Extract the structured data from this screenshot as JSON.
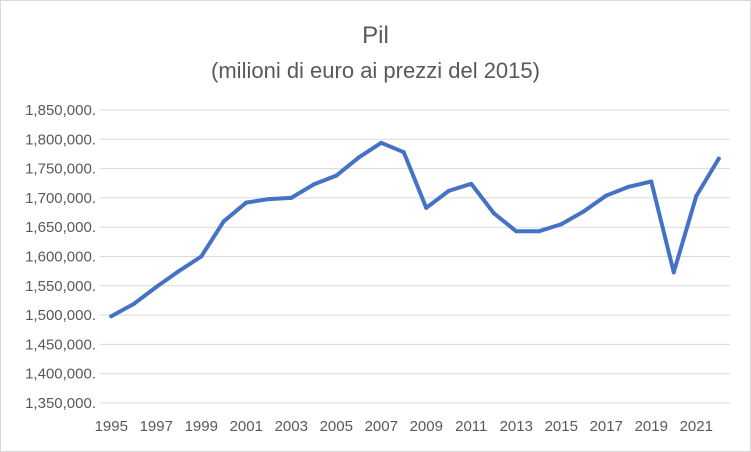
{
  "chart_data": {
    "type": "line",
    "title": "Pil",
    "subtitle": "(milioni di euro ai prezzi del 2015)",
    "xlabel": "",
    "ylabel": "",
    "x": [
      1995,
      1996,
      1997,
      1998,
      1999,
      2000,
      2001,
      2002,
      2003,
      2004,
      2005,
      2006,
      2007,
      2008,
      2009,
      2010,
      2011,
      2012,
      2013,
      2014,
      2015,
      2016,
      2017,
      2018,
      2019,
      2020,
      2021,
      2022
    ],
    "x_tick_labels": [
      "1995",
      "1997",
      "1999",
      "2001",
      "2003",
      "2005",
      "2007",
      "2009",
      "2011",
      "2013",
      "2015",
      "2017",
      "2019",
      "2021"
    ],
    "y_tick_labels": [
      "1,350,000.",
      "1,400,000.",
      "1,450,000.",
      "1,500,000.",
      "1,550,000.",
      "1,600,000.",
      "1,650,000.",
      "1,700,000.",
      "1,750,000.",
      "1,800,000.",
      "1,850,000."
    ],
    "ylim": [
      1350000,
      1850000
    ],
    "grid": true,
    "series": [
      {
        "values": [
          1498000,
          1519000,
          1548000,
          1575000,
          1600000,
          1660000,
          1692000,
          1698000,
          1700000,
          1723000,
          1738000,
          1769000,
          1794000,
          1778000,
          1683000,
          1712000,
          1724000,
          1674000,
          1643000,
          1643000,
          1655000,
          1677000,
          1704000,
          1719000,
          1728000,
          1573000,
          1703000,
          1767000
        ]
      }
    ],
    "colors": {
      "series": "#4472c4",
      "grid": "#d9d9d9",
      "text": "#595959"
    }
  }
}
